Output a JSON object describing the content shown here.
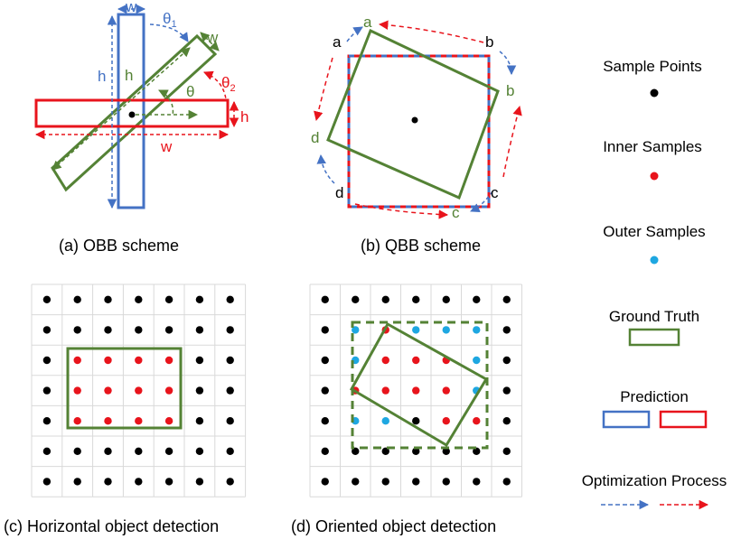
{
  "panels": {
    "a": {
      "caption": "(a) OBB scheme",
      "labels": {
        "w_blue": "w",
        "h_blue": "h",
        "h_green": "h",
        "w_green": "w",
        "theta": "θ",
        "theta1": "θ",
        "theta1_sub": "1",
        "theta2": "θ",
        "theta2_sub": "2",
        "h_red": "h",
        "w_red": "w"
      }
    },
    "b": {
      "caption": "(b) QBB scheme",
      "labels": {
        "a_black": "a",
        "b_black": "b",
        "c_black": "c",
        "d_black": "d",
        "a_green": "a",
        "b_green": "b",
        "c_green": "c",
        "d_green": "d"
      }
    },
    "c": {
      "caption": "(c) Horizontal object detection"
    },
    "d": {
      "caption": "(d) Oriented object detection"
    }
  },
  "legend": {
    "sample_points": "Sample Points",
    "inner_samples": "Inner Samples",
    "outer_samples": "Outer Samples",
    "ground_truth": "Ground Truth",
    "prediction": "Prediction",
    "optimization": "Optimization Process"
  },
  "colors": {
    "green": "#548235",
    "blue": "#4472c4",
    "red": "#e8141c",
    "cyan": "#1ea7e1",
    "black": "#000000",
    "grid": "#d9d9d9"
  },
  "grids": {
    "c": {
      "inner": [
        [
          2,
          1
        ],
        [
          2,
          2
        ],
        [
          2,
          3
        ],
        [
          2,
          4
        ],
        [
          3,
          1
        ],
        [
          3,
          2
        ],
        [
          3,
          3
        ],
        [
          3,
          4
        ],
        [
          4,
          1
        ],
        [
          4,
          2
        ],
        [
          4,
          3
        ],
        [
          4,
          4
        ]
      ],
      "outer": []
    },
    "d": {
      "inner": [
        [
          1,
          2
        ],
        [
          2,
          2
        ],
        [
          2,
          3
        ],
        [
          2,
          4
        ],
        [
          3,
          1
        ],
        [
          3,
          2
        ],
        [
          3,
          3
        ],
        [
          3,
          4
        ],
        [
          4,
          4
        ],
        [
          4,
          5
        ]
      ],
      "outer": [
        [
          1,
          1
        ],
        [
          1,
          3
        ],
        [
          1,
          4
        ],
        [
          1,
          5
        ],
        [
          2,
          1
        ],
        [
          2,
          5
        ],
        [
          3,
          5
        ],
        [
          4,
          1
        ],
        [
          4,
          2
        ]
      ]
    }
  }
}
